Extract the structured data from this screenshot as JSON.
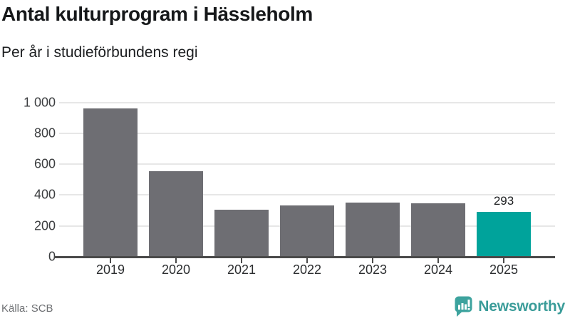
{
  "header": {
    "title": "Antal kulturprogram i Hässleholm",
    "subtitle": "Per år i studieförbundens regi"
  },
  "chart_data": {
    "type": "bar",
    "title": "Antal kulturprogram i Hässleholm",
    "subtitle": "Per år i studieförbundens regi",
    "categories": [
      "2019",
      "2020",
      "2021",
      "2022",
      "2023",
      "2024",
      "2025"
    ],
    "values": [
      960,
      552,
      303,
      334,
      351,
      348,
      293
    ],
    "highlight_index": 6,
    "annotations": [
      {
        "index": 6,
        "text": "293"
      }
    ],
    "xlabel": "",
    "ylabel": "",
    "ylim": [
      0,
      1000
    ],
    "yticks": [
      0,
      200,
      400,
      600,
      800,
      1000
    ],
    "ytick_labels": [
      "0",
      "200",
      "400",
      "600",
      "800",
      "1 000"
    ],
    "grid": "horizontal",
    "legend": "none",
    "colors": {
      "bar": "#6e6e73",
      "highlight": "#00a39b",
      "gridline": "#e7e7e7",
      "axis": "#4a4a4a"
    }
  },
  "footer": {
    "source": "Källa: SCB",
    "brand": "Newsworthy",
    "logo_icon": "newsworthy-chart-bubble-icon",
    "brand_color": "#3a9c99"
  }
}
